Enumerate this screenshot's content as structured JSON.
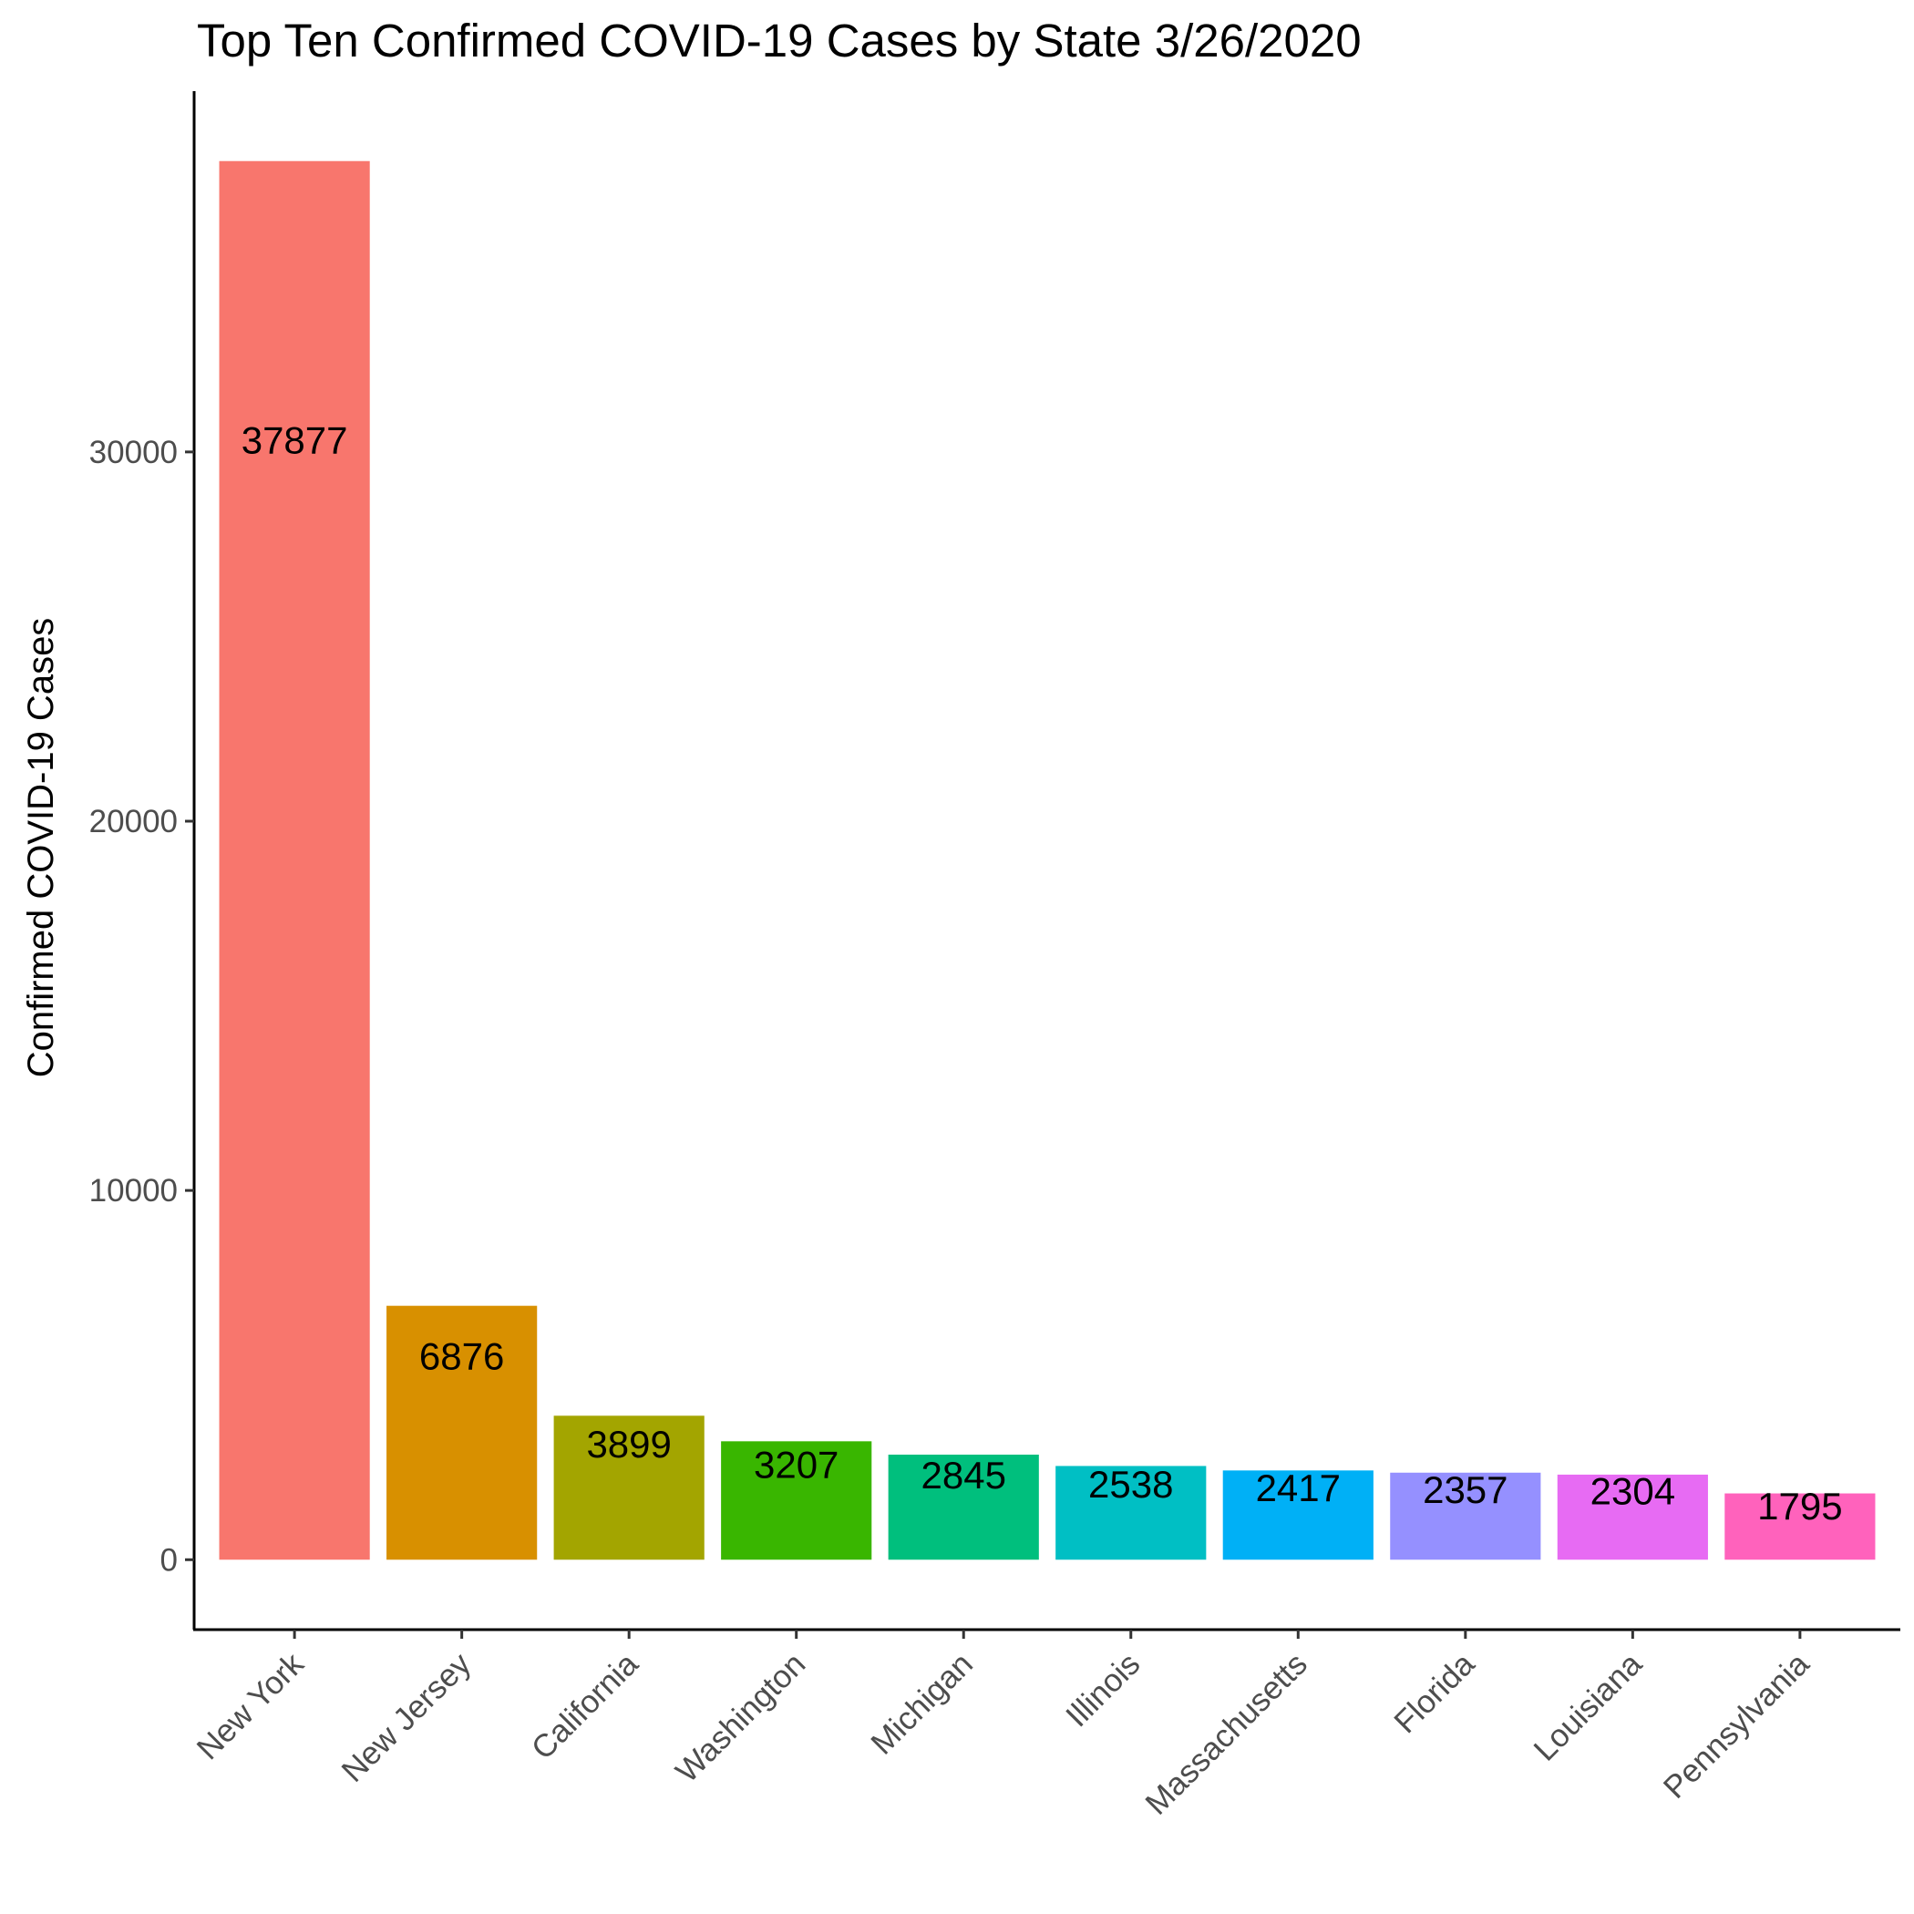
{
  "chart_data": {
    "type": "bar",
    "title": "Top Ten Confirmed COVID-19 Cases by State 3/26/2020",
    "xlabel": "",
    "ylabel": "Confirmed COVID-19 Cases",
    "categories": [
      "New York",
      "New Jersey",
      "California",
      "Washington",
      "Michigan",
      "Illinois",
      "Massachusetts",
      "Florida",
      "Louisiana",
      "Pennsylvania"
    ],
    "values": [
      37877,
      6876,
      3899,
      3207,
      2845,
      2538,
      2417,
      2357,
      2304,
      1795
    ],
    "data_labels": [
      "37877",
      "6876",
      "3899",
      "3207",
      "2845",
      "2538",
      "2417",
      "2357",
      "2304",
      "1795"
    ],
    "colors": [
      "#F8766D",
      "#D89000",
      "#A3A500",
      "#39B600",
      "#00BF7D",
      "#00BFC4",
      "#00B0F6",
      "#9590FF",
      "#E76BF3",
      "#FF62BC"
    ],
    "yticks": [
      0,
      10000,
      20000,
      30000
    ],
    "ytick_labels": [
      "0",
      "10000",
      "20000",
      "30000"
    ],
    "ylim": [
      -1894,
      39771
    ],
    "grid": false,
    "legend": "none"
  }
}
